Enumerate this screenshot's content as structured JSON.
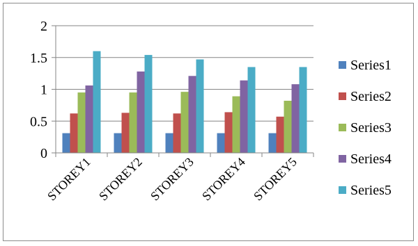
{
  "chart_data": {
    "type": "bar",
    "categories": [
      "STOREY1",
      "STOREY2",
      "STOREY3",
      "STOREY4",
      "STOREY5"
    ],
    "series": [
      {
        "name": "Series1",
        "color": "#4F81BD",
        "values": [
          0.31,
          0.31,
          0.31,
          0.31,
          0.31
        ]
      },
      {
        "name": "Series2",
        "color": "#C0504D",
        "values": [
          0.62,
          0.63,
          0.62,
          0.64,
          0.57
        ]
      },
      {
        "name": "Series3",
        "color": "#9BBB59",
        "values": [
          0.95,
          0.95,
          0.96,
          0.89,
          0.82
        ]
      },
      {
        "name": "Series4",
        "color": "#8064A2",
        "values": [
          1.06,
          1.28,
          1.21,
          1.14,
          1.08
        ]
      },
      {
        "name": "Series5",
        "color": "#4BACC6",
        "values": [
          1.6,
          1.54,
          1.47,
          1.35,
          1.35
        ]
      }
    ],
    "y_ticks": [
      "0",
      "0.5",
      "1",
      "1.5",
      "2"
    ],
    "ylim": [
      0,
      2
    ],
    "grid": true,
    "legend_position": "right"
  }
}
